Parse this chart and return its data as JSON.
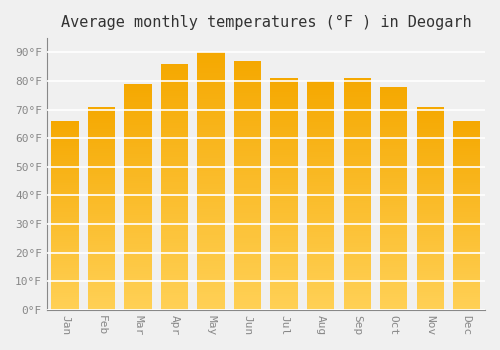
{
  "title": "Average monthly temperatures (°F ) in Deogarh",
  "months": [
    "Jan",
    "Feb",
    "Mar",
    "Apr",
    "May",
    "Jun",
    "Jul",
    "Aug",
    "Sep",
    "Oct",
    "Nov",
    "Dec"
  ],
  "values": [
    66,
    71,
    79,
    86,
    90,
    87,
    81,
    80,
    81,
    78,
    71,
    66
  ],
  "bar_color": "#F5A800",
  "bar_color_bottom": "#FFD055",
  "background_color": "#F0F0F0",
  "grid_color": "#FFFFFF",
  "ylabel_ticks": [
    0,
    10,
    20,
    30,
    40,
    50,
    60,
    70,
    80,
    90
  ],
  "ylim": [
    0,
    95
  ],
  "title_fontsize": 11,
  "tick_fontsize": 8,
  "font_family": "monospace"
}
